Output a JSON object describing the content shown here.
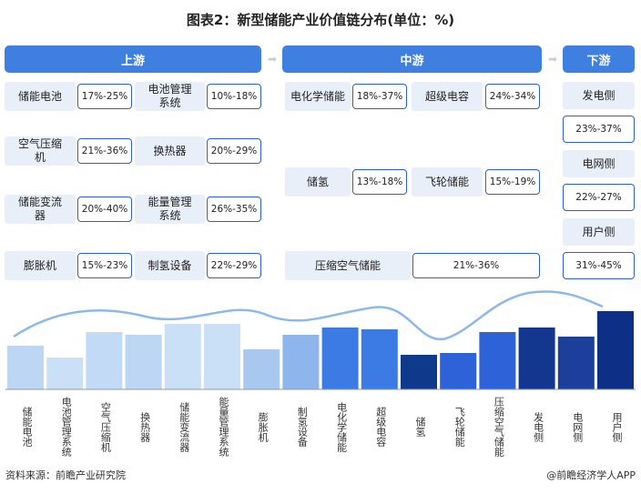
{
  "title": "图表2：新型储能产业价值链分布(单位：%)",
  "upstream": {
    "header": "上游",
    "items": [
      {
        "name": "储能电池",
        "range": "17%-25%"
      },
      {
        "name": "电池管理系统",
        "range": "10%-18%"
      },
      {
        "name": "空气压缩机",
        "range": "21%-36%"
      },
      {
        "name": "换热器",
        "range": "20%-29%"
      },
      {
        "name": "储能变流器",
        "range": "20%-40%"
      },
      {
        "name": "能量管理系统",
        "range": "26%-35%"
      },
      {
        "name": "膨胀机",
        "range": "15%-23%"
      },
      {
        "name": "制氢设备",
        "range": "22%-29%"
      }
    ]
  },
  "midstream": {
    "header": "中游",
    "items": [
      {
        "name": "电化学储能",
        "range": "18%-37%"
      },
      {
        "name": "超级电容",
        "range": "24%-34%"
      },
      {
        "name": "储氢",
        "range": "13%-18%"
      },
      {
        "name": "飞轮储能",
        "range": "15%-19%"
      },
      {
        "name": "压缩空气储能",
        "range": "21%-36%"
      }
    ]
  },
  "downstream": {
    "header": "下游",
    "items": [
      {
        "name": "发电侧",
        "range": "23%-37%"
      },
      {
        "name": "电网侧",
        "range": "22%-27%"
      },
      {
        "name": "用户侧",
        "range": "31%-45%"
      }
    ]
  },
  "bar_chart": {
    "categories": [
      "储能电池",
      "电池管理系统",
      "空气压缩机",
      "换热器",
      "储能变流器",
      "能量管理系统",
      "膨胀机",
      "制氢设备",
      "电化学储能",
      "超级电容",
      "储氢",
      "飞轮储能",
      "压缩空气储能",
      "发电侧",
      "电网侧",
      "用户侧"
    ]
  },
  "source": "资料来源：前瞻产业研究院",
  "logo": "@前瞻经济学人APP"
}
